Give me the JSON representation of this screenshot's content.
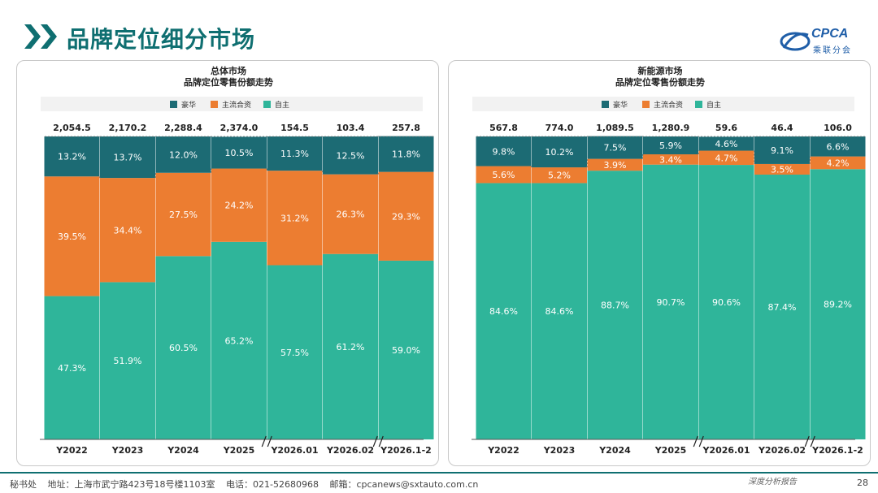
{
  "page": {
    "title": "品牌定位细分市场",
    "logo_text": "CPCA",
    "logo_sub": "乘联分会",
    "footer": {
      "office": "秘书处",
      "address": "地址：上海市武宁路423号18号楼1103室",
      "phone": "电话：021-52680968",
      "email": "邮箱：cpcanews@sxtauto.com.cn",
      "tagline": "深度分析报告",
      "page_number": "28"
    }
  },
  "colors": {
    "luxury": "#1c6b74",
    "mainstream": "#ec7d31",
    "domestic": "#2fb59a",
    "brand": "#0f6f71"
  },
  "chart_data": [
    {
      "type": "bar",
      "stacked": "percent",
      "title": "总体市场",
      "subtitle": "品牌定位零售份额走势",
      "legend": [
        "豪华",
        "主流合资",
        "自主"
      ],
      "categories": [
        "Y2022",
        "Y2023",
        "Y2024",
        "Y2025",
        "Y2026.01",
        "Y2026.02",
        "Y2026.1-2"
      ],
      "totals": [
        "2,054.5",
        "2,170.2",
        "2,288.4",
        "2,374.0",
        "154.5",
        "103.4",
        "257.8"
      ],
      "series": [
        {
          "name": "自主",
          "values": [
            47.3,
            51.9,
            60.5,
            65.2,
            57.5,
            61.2,
            59.0
          ]
        },
        {
          "name": "主流合资",
          "values": [
            39.5,
            34.4,
            27.5,
            24.2,
            31.2,
            26.3,
            29.3
          ]
        },
        {
          "name": "豪华",
          "values": [
            13.2,
            13.7,
            12.0,
            10.5,
            11.3,
            12.5,
            11.8
          ]
        }
      ],
      "ylim": [
        0,
        100
      ],
      "axis_breaks_after": [
        3,
        5
      ]
    },
    {
      "type": "bar",
      "stacked": "percent",
      "title": "新能源市场",
      "subtitle": "品牌定位零售份额走势",
      "legend": [
        "豪华",
        "主流合资",
        "自主"
      ],
      "categories": [
        "Y2022",
        "Y2023",
        "Y2024",
        "Y2025",
        "Y2026.01",
        "Y2026.02",
        "Y2026.1-2"
      ],
      "totals": [
        "567.8",
        "774.0",
        "1,089.5",
        "1,280.9",
        "59.6",
        "46.4",
        "106.0"
      ],
      "series": [
        {
          "name": "自主",
          "values": [
            84.6,
            84.6,
            88.7,
            90.7,
            90.6,
            87.4,
            89.2
          ]
        },
        {
          "name": "主流合资",
          "values": [
            5.6,
            5.2,
            3.9,
            3.4,
            4.7,
            3.5,
            4.2
          ]
        },
        {
          "name": "豪华",
          "values": [
            9.8,
            10.2,
            7.5,
            5.9,
            4.6,
            9.1,
            6.6
          ]
        }
      ],
      "ylim": [
        0,
        100
      ],
      "axis_breaks_after": [
        3,
        5
      ]
    }
  ]
}
